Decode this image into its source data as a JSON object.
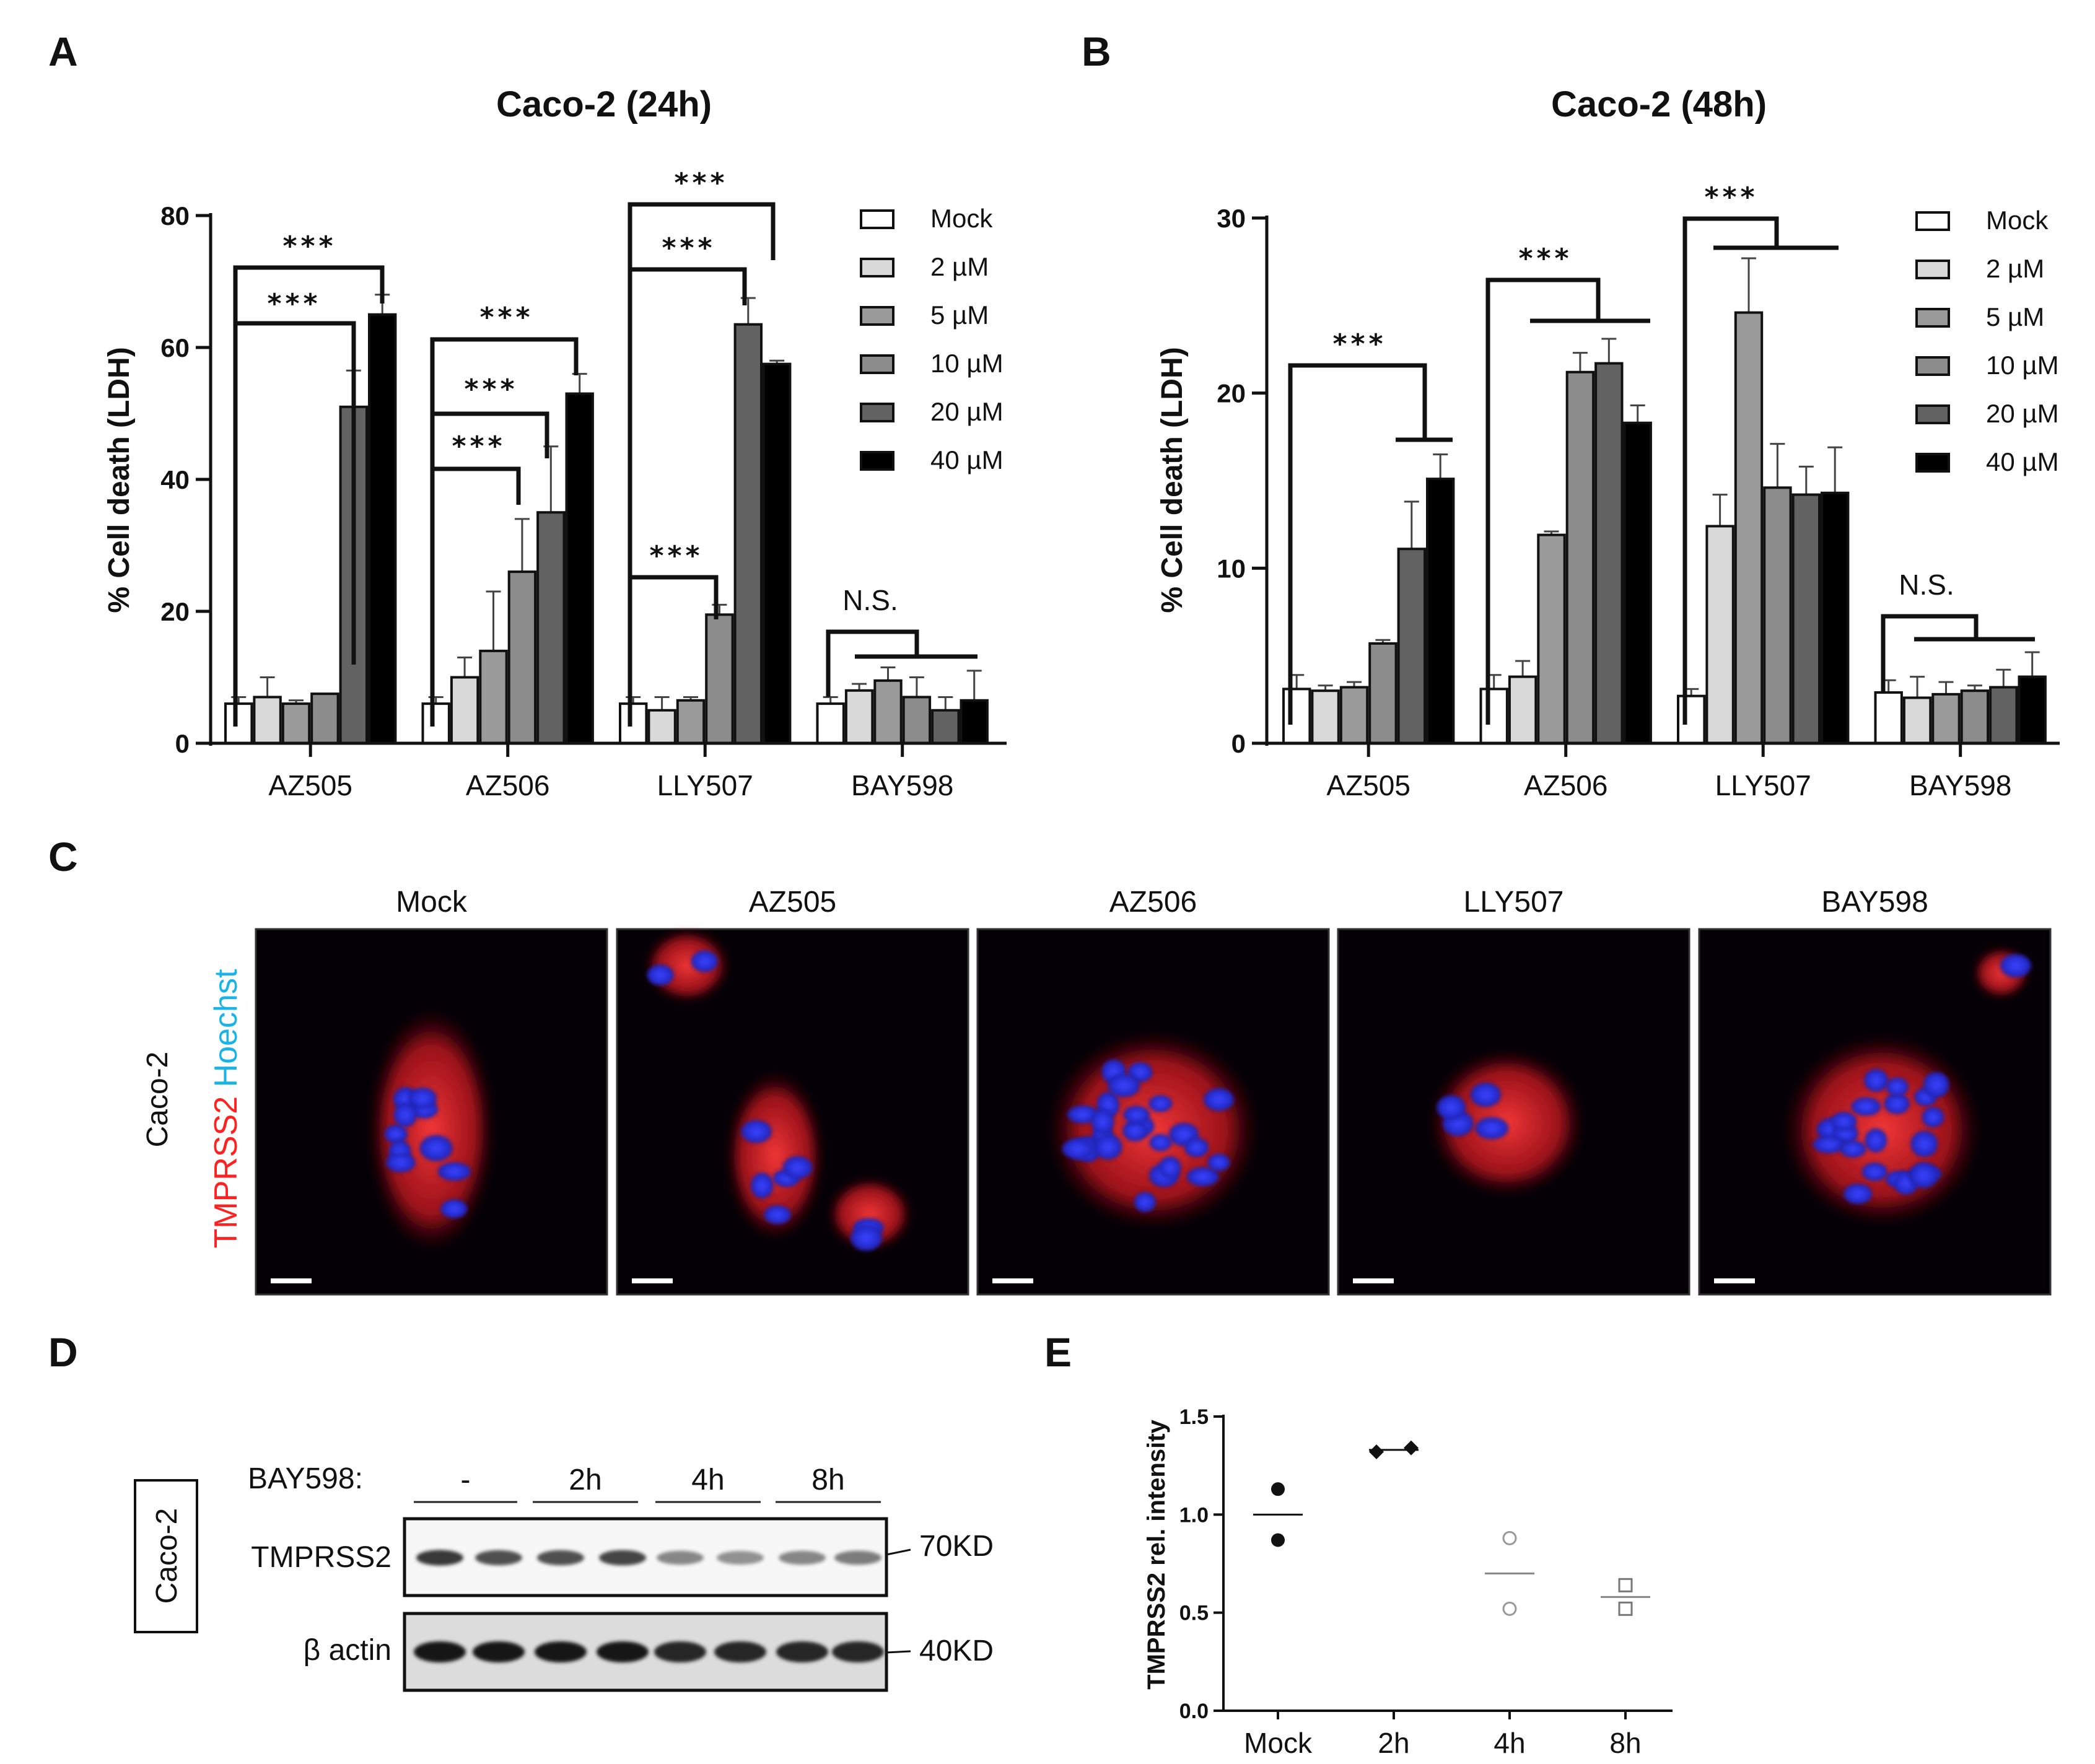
{
  "panel_labels": [
    "A",
    "B",
    "C",
    "D",
    "E"
  ],
  "colors": {
    "Mock": "#ffffff",
    "2 µM": "#d9d9d9",
    "5 µM": "#9a9a9a",
    "10 µM": "#8c8c8c",
    "20 µM": "#626262",
    "40 µM": "#000000"
  },
  "chart_data": [
    {
      "id": "A",
      "type": "bar",
      "title": "Caco-2 (24h)",
      "ylabel": "% Cell death (LDH)",
      "ylim": [
        0,
        80
      ],
      "yticks": [
        "0",
        "20",
        "40",
        "60",
        "80"
      ],
      "categories": [
        "AZ505",
        "AZ506",
        "LLY507",
        "BAY598"
      ],
      "legend": [
        "Mock",
        "2 µM",
        "5 µM",
        "10 µM",
        "20 µM",
        "40 µM"
      ],
      "series": [
        {
          "name": "Mock",
          "values": [
            6,
            6,
            6,
            6
          ],
          "errors": [
            1,
            1,
            1,
            1
          ]
        },
        {
          "name": "2 µM",
          "values": [
            7,
            10,
            5,
            8
          ],
          "errors": [
            3,
            3,
            2,
            1
          ]
        },
        {
          "name": "5 µM",
          "values": [
            6,
            14,
            6.5,
            9.5
          ],
          "errors": [
            0.5,
            9,
            0.5,
            2
          ]
        },
        {
          "name": "10 µM",
          "values": [
            7.5,
            26,
            19.5,
            7
          ],
          "errors": [
            0,
            8,
            1.5,
            3
          ]
        },
        {
          "name": "20 µM",
          "values": [
            51,
            35,
            63.5,
            5
          ],
          "errors": [
            5.5,
            10,
            4,
            2
          ]
        },
        {
          "name": "40 µM",
          "values": [
            65,
            53,
            57.5,
            6.5
          ],
          "errors": [
            3,
            3,
            0.5,
            4.5
          ]
        }
      ],
      "annotations": [
        "***",
        "***",
        "***",
        "***",
        "***",
        "***",
        "***",
        "***",
        "N.S."
      ]
    },
    {
      "id": "B",
      "type": "bar",
      "title": "Caco-2 (48h)",
      "ylabel": "% Cell death (LDH)",
      "ylim": [
        0,
        30
      ],
      "yticks": [
        "0",
        "10",
        "20",
        "30"
      ],
      "categories": [
        "AZ505",
        "AZ506",
        "LLY507",
        "BAY598"
      ],
      "legend": [
        "Mock",
        "2 µM",
        "5 µM",
        "10 µM",
        "20 µM",
        "40 µM"
      ],
      "series": [
        {
          "name": "Mock",
          "values": [
            3.1,
            3.1,
            2.7,
            2.9
          ],
          "errors": [
            0.8,
            0.8,
            0.4,
            0.7
          ]
        },
        {
          "name": "2 µM",
          "values": [
            3.0,
            3.8,
            12.4,
            2.6
          ],
          "errors": [
            0.3,
            0.9,
            1.8,
            1.2
          ]
        },
        {
          "name": "5 µM",
          "values": [
            3.2,
            11.9,
            24.6,
            2.8
          ],
          "errors": [
            0.3,
            0.2,
            3.1,
            0.7
          ]
        },
        {
          "name": "10 µM",
          "values": [
            5.7,
            21.2,
            14.6,
            3.0
          ],
          "errors": [
            0.2,
            1.1,
            2.5,
            0.3
          ]
        },
        {
          "name": "20 µM",
          "values": [
            11.1,
            21.7,
            14.2,
            3.2
          ],
          "errors": [
            2.7,
            1.4,
            1.6,
            1.0
          ]
        },
        {
          "name": "40 µM",
          "values": [
            15.1,
            18.3,
            14.3,
            3.8
          ],
          "errors": [
            1.4,
            1.0,
            2.6,
            1.4
          ]
        }
      ],
      "annotations": [
        "***",
        "***",
        "***",
        "N.S."
      ]
    },
    {
      "id": "E",
      "type": "scatter",
      "ylabel": "TMPRSS2 rel. intensity",
      "ylim": [
        0,
        1.5
      ],
      "yticks": [
        "0.0",
        "0.5",
        "1.0",
        "1.5"
      ],
      "categories": [
        "Mock",
        "2h",
        "4h",
        "8h"
      ],
      "points": [
        {
          "category": "Mock",
          "values": [
            1.13,
            0.87
          ],
          "mean": 1.0,
          "marker": "filled-circle"
        },
        {
          "category": "2h",
          "values": [
            1.32,
            1.34
          ],
          "mean": 1.33,
          "marker": "filled-diamond"
        },
        {
          "category": "4h",
          "values": [
            0.88,
            0.52
          ],
          "mean": 0.7,
          "marker": "open-circle"
        },
        {
          "category": "8h",
          "values": [
            0.64,
            0.52
          ],
          "mean": 0.58,
          "marker": "open-square"
        }
      ]
    }
  ],
  "panelA": {
    "stars": [
      "***",
      "***",
      "***",
      "***",
      "***",
      "***",
      "***",
      "***"
    ],
    "ns": "N.S."
  },
  "panelB": {
    "stars": [
      "***",
      "***",
      "***"
    ],
    "ns": "N.S."
  },
  "panelC": {
    "row_label": "Caco-2",
    "stain_a": "TMPRSS2",
    "stain_b": "Hoechst",
    "stain_a_color": "#ff2020",
    "stain_b_color": "#18b4e8",
    "columns": [
      "Mock",
      "AZ505",
      "AZ506",
      "LLY507",
      "BAY598"
    ]
  },
  "panelD": {
    "cell_line": "Caco-2",
    "treatment_label": "BAY598:",
    "lanes": [
      "-",
      "2h",
      "4h",
      "8h"
    ],
    "bands": [
      "TMPRSS2",
      "β actin"
    ],
    "markers": [
      "70KD",
      "40KD"
    ],
    "tmprss2_intensity": [
      0.9,
      0.8,
      0.8,
      0.85,
      0.55,
      0.5,
      0.55,
      0.6
    ],
    "actin_intensity": [
      1,
      1,
      1,
      1,
      0.95,
      0.95,
      0.95,
      0.95
    ]
  }
}
